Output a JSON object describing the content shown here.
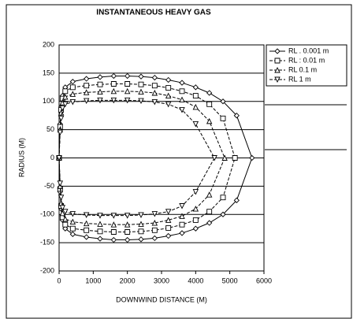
{
  "chart_data": {
    "type": "line",
    "title": "INSTANTANEOUS HEAVY GAS",
    "xlabel": "DOWNWIND DISTANCE (M)",
    "ylabel": "RADIUS (M)",
    "xlim": [
      0,
      6000
    ],
    "xticks": [
      0,
      1000,
      2000,
      3000,
      4000,
      5000,
      6000
    ],
    "ylim": [
      -200,
      200
    ],
    "yticks": [
      200,
      150,
      100,
      50,
      0,
      -50,
      -100,
      -150,
      -200
    ],
    "grid": true,
    "legend": "upper right",
    "series": [
      {
        "name": "RL . 0.001 m",
        "color": "#000000",
        "marker": "diamond",
        "line_style": "solid",
        "x": [
          0,
          30,
          60,
          100,
          180,
          400,
          800,
          1200,
          1600,
          2000,
          2400,
          2800,
          3200,
          3600,
          4000,
          4400,
          4800,
          5200,
          5650,
          5200,
          4800,
          4400,
          4000,
          3600,
          3200,
          2800,
          2400,
          2000,
          1600,
          1200,
          800,
          400,
          180,
          100,
          60,
          30,
          0
        ],
        "values": [
          0,
          60,
          90,
          110,
          125,
          135,
          140,
          143,
          145,
          145,
          144,
          142,
          138,
          133,
          125,
          115,
          100,
          75,
          0,
          -75,
          -100,
          -115,
          -125,
          -133,
          -138,
          -142,
          -144,
          -145,
          -145,
          -143,
          -140,
          -135,
          -125,
          -110,
          -90,
          -60,
          0
        ]
      },
      {
        "name": "RL : 0.01 m",
        "color": "#000000",
        "marker": "square",
        "line_style": "dashed",
        "x": [
          0,
          30,
          60,
          100,
          180,
          400,
          800,
          1200,
          1600,
          2000,
          2400,
          2800,
          3200,
          3600,
          4000,
          4400,
          4800,
          5150,
          4800,
          4400,
          4000,
          3600,
          3200,
          2800,
          2400,
          2000,
          1600,
          1200,
          800,
          400,
          180,
          100,
          60,
          30,
          0
        ],
        "values": [
          0,
          55,
          85,
          105,
          118,
          125,
          128,
          130,
          131,
          131,
          130,
          128,
          124,
          118,
          110,
          95,
          70,
          0,
          -70,
          -95,
          -110,
          -118,
          -124,
          -128,
          -130,
          -131,
          -131,
          -130,
          -128,
          -125,
          -118,
          -105,
          -85,
          -55,
          0
        ]
      },
      {
        "name": "RL 0.1 m",
        "color": "#000000",
        "marker": "triangle-up",
        "line_style": "dashed",
        "x": [
          0,
          30,
          60,
          100,
          180,
          400,
          800,
          1200,
          1600,
          2000,
          2400,
          2800,
          3200,
          3600,
          4000,
          4400,
          4850,
          4400,
          4000,
          3600,
          3200,
          2800,
          2400,
          2000,
          1600,
          1200,
          800,
          400,
          180,
          100,
          60,
          30,
          0
        ],
        "values": [
          0,
          50,
          80,
          98,
          108,
          113,
          116,
          117,
          118,
          118,
          117,
          115,
          110,
          103,
          90,
          65,
          0,
          -65,
          -90,
          -103,
          -110,
          -115,
          -117,
          -118,
          -118,
          -117,
          -116,
          -113,
          -108,
          -98,
          -80,
          -50,
          0
        ]
      },
      {
        "name": "RL 1 m",
        "color": "#000000",
        "marker": "triangle-down",
        "line_style": "dashed",
        "x": [
          0,
          30,
          60,
          100,
          180,
          400,
          800,
          1200,
          1600,
          2000,
          2400,
          2800,
          3200,
          3600,
          4000,
          4550,
          4000,
          3600,
          3200,
          2800,
          2400,
          2000,
          1600,
          1200,
          800,
          400,
          180,
          100,
          60,
          30,
          0
        ],
        "values": [
          0,
          45,
          70,
          88,
          95,
          99,
          101,
          102,
          102,
          102,
          101,
          99,
          95,
          85,
          60,
          0,
          -60,
          -85,
          -95,
          -99,
          -101,
          -102,
          -102,
          -102,
          -101,
          -99,
          -95,
          -88,
          -70,
          -45,
          0
        ]
      }
    ]
  }
}
